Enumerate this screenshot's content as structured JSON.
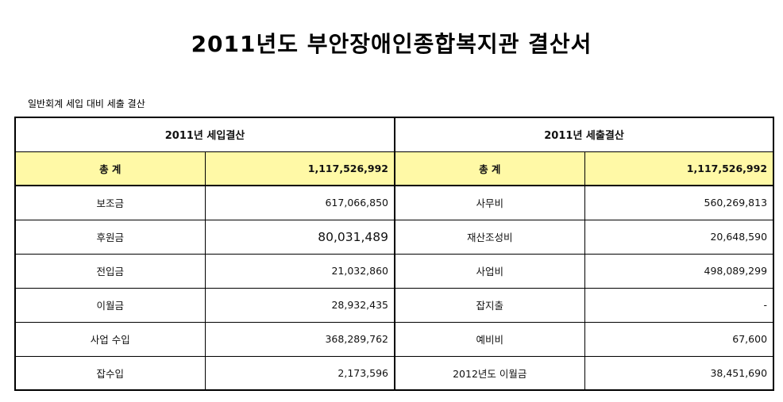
{
  "title": "2011년도 부안장애인종합복지관 결산서",
  "subtitle": "일반회계  세입 대비 세출 결산",
  "income_header": "2011년 세입결산",
  "expense_header": "2011년 세출결산",
  "total": {
    "income_label": "총 계",
    "income_amount": "1,117,526,992",
    "expense_label": "총 계",
    "expense_amount": "1,117,526,992"
  },
  "rows": [
    {
      "income_label": "보조금",
      "income_amount": "617,066,850",
      "expense_label": "사무비",
      "expense_amount": "560,269,813"
    },
    {
      "income_label": "후원금",
      "income_amount": "80,031,489",
      "expense_label": "재산조성비",
      "expense_amount": "20,648,590"
    },
    {
      "income_label": "전입금",
      "income_amount": "21,032,860",
      "expense_label": "사업비",
      "expense_amount": "498,089,299"
    },
    {
      "income_label": "이월금",
      "income_amount": "28,932,435",
      "expense_label": "잡지출",
      "expense_amount": "-"
    },
    {
      "income_label": "사업 수입",
      "income_amount": "368,289,762",
      "expense_label": "예비비",
      "expense_amount": "67,600"
    },
    {
      "income_label": "잡수입",
      "income_amount": "2,173,596",
      "expense_label": "2012년도  이월금",
      "expense_amount": "38,451,690"
    }
  ]
}
